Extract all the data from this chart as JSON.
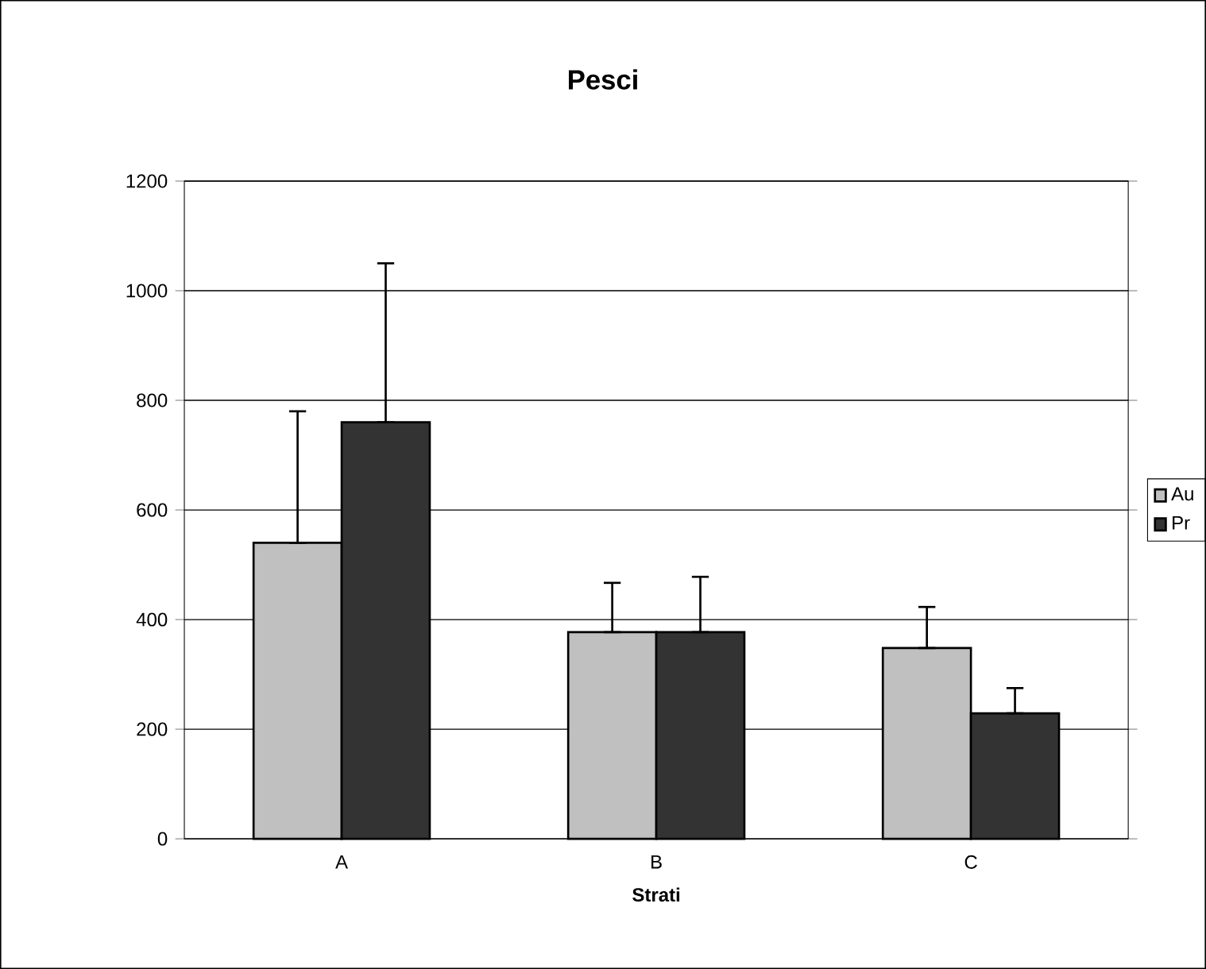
{
  "chart_data": {
    "type": "bar",
    "title": "Pesci",
    "xlabel": "Strati",
    "categories": [
      "A",
      "B",
      "C"
    ],
    "series": [
      {
        "name": "Au",
        "color": "#c0c0c0",
        "values": [
          540,
          377,
          348
        ],
        "errors": [
          [
            540,
            780
          ],
          [
            377,
            467
          ],
          [
            348,
            423
          ]
        ]
      },
      {
        "name": "Pr",
        "color": "#333333",
        "values": [
          760,
          377,
          229
        ],
        "errors": [
          [
            760,
            1050
          ],
          [
            377,
            478
          ],
          [
            229,
            275
          ]
        ]
      }
    ],
    "ylim": [
      0,
      1200
    ],
    "yticks": [
      0,
      200,
      400,
      600,
      800,
      1000,
      1200
    ],
    "grid": "y",
    "legend": "right"
  }
}
